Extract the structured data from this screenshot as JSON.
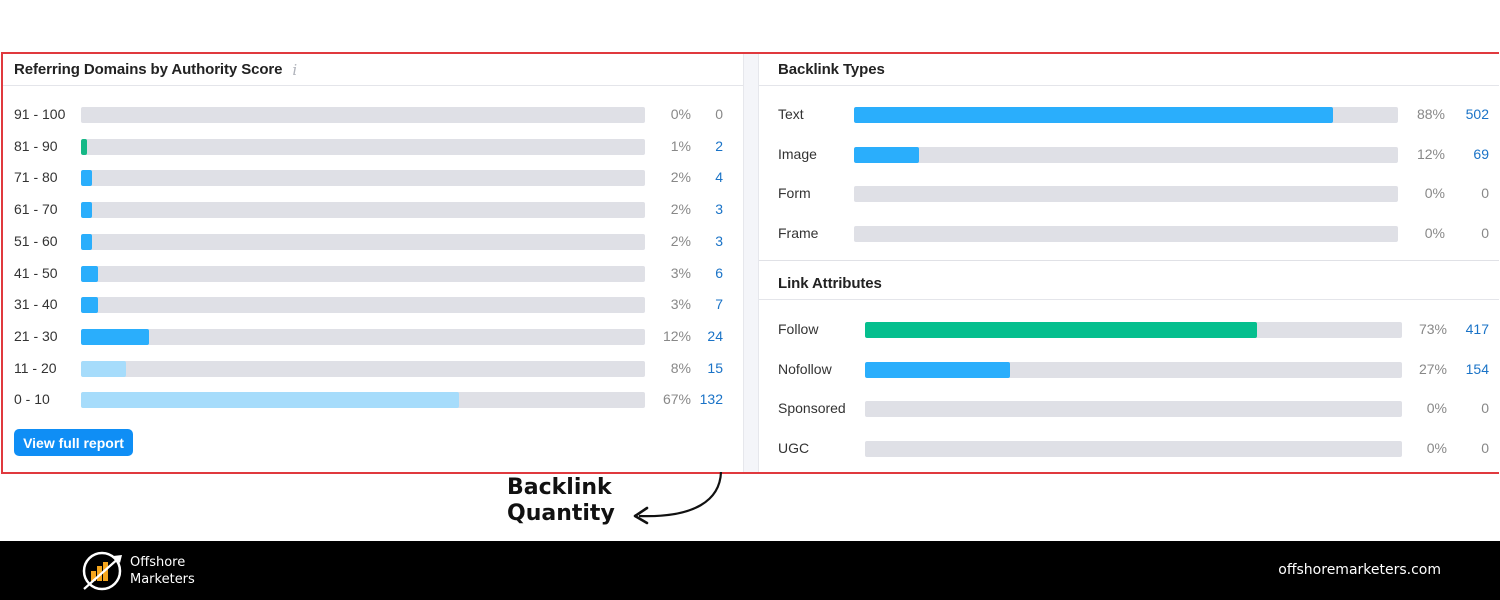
{
  "left_card": {
    "title": "Referring Domains by Authority Score",
    "info_icon": "i",
    "rows": [
      {
        "label": "91 - 100",
        "pct": "0%",
        "count": "0",
        "fill": 0,
        "color": "#2aaefc"
      },
      {
        "label": "81 - 90",
        "pct": "1%",
        "count": "2",
        "fill": 1,
        "color": "#15b886"
      },
      {
        "label": "71 - 80",
        "pct": "2%",
        "count": "4",
        "fill": 2,
        "color": "#2aaefc"
      },
      {
        "label": "61 - 70",
        "pct": "2%",
        "count": "3",
        "fill": 2,
        "color": "#2aaefc"
      },
      {
        "label": "51 - 60",
        "pct": "2%",
        "count": "3",
        "fill": 2,
        "color": "#2aaefc"
      },
      {
        "label": "41 - 50",
        "pct": "3%",
        "count": "6",
        "fill": 3,
        "color": "#2aaefc"
      },
      {
        "label": "31 - 40",
        "pct": "3%",
        "count": "7",
        "fill": 3,
        "color": "#2aaefc"
      },
      {
        "label": "21 - 30",
        "pct": "12%",
        "count": "24",
        "fill": 12,
        "color": "#2aaefc"
      },
      {
        "label": "11 - 20",
        "pct": "8%",
        "count": "15",
        "fill": 8,
        "color": "#a6dcfb"
      },
      {
        "label": "0 - 10",
        "pct": "67%",
        "count": "132",
        "fill": 67,
        "color": "#a6dcfb"
      }
    ],
    "button_label": "View full report"
  },
  "backlink_types": {
    "title": "Backlink Types",
    "rows": [
      {
        "label": "Text",
        "pct": "88%",
        "count": "502",
        "fill": 88,
        "color": "#2aaefc"
      },
      {
        "label": "Image",
        "pct": "12%",
        "count": "69",
        "fill": 12,
        "color": "#2aaefc"
      },
      {
        "label": "Form",
        "pct": "0%",
        "count": "0",
        "fill": 0,
        "color": "#2aaefc"
      },
      {
        "label": "Frame",
        "pct": "0%",
        "count": "0",
        "fill": 0,
        "color": "#2aaefc"
      }
    ]
  },
  "link_attributes": {
    "title": "Link Attributes",
    "rows": [
      {
        "label": "Follow",
        "pct": "73%",
        "count": "417",
        "fill": 73,
        "color": "#05bf8e"
      },
      {
        "label": "Nofollow",
        "pct": "27%",
        "count": "154",
        "fill": 27,
        "color": "#2aaefc"
      },
      {
        "label": "Sponsored",
        "pct": "0%",
        "count": "0",
        "fill": 0,
        "color": "#2aaefc"
      },
      {
        "label": "UGC",
        "pct": "0%",
        "count": "0",
        "fill": 0,
        "color": "#2aaefc"
      }
    ]
  },
  "annotation": {
    "line1": "Backlink",
    "line2": "Quantity"
  },
  "footer": {
    "brand_line1": "Offshore",
    "brand_line2": "Marketers",
    "url": "offshoremarketers.com"
  },
  "colors": {
    "highlight_border": "#e0393e",
    "primary_blue": "#2aaefc",
    "light_blue": "#a6dcfb",
    "green": "#05bf8e",
    "track": "#dfe0e6",
    "link_text": "#1a73c7",
    "button": "#0f8ef5"
  }
}
